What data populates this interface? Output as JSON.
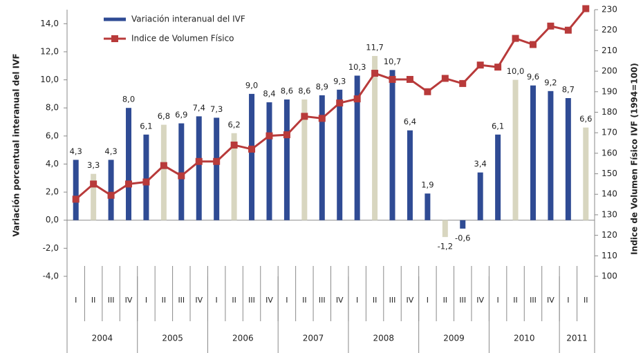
{
  "chart_data": {
    "type": "bar-line",
    "y_label": "Variación porcentual interanual del IVF",
    "y2_label": "Indice de Volumen Físico IVF (1994=100)",
    "categories": [
      "I",
      "II",
      "III",
      "IV",
      "I",
      "II",
      "III",
      "IV",
      "I",
      "II",
      "III",
      "IV",
      "I",
      "II",
      "III",
      "IV",
      "I",
      "II",
      "III",
      "IV",
      "I",
      "II",
      "III",
      "IV",
      "I",
      "II",
      "III",
      "IV",
      "I",
      "II"
    ],
    "groups": [
      {
        "label": "2004",
        "count": 4
      },
      {
        "label": "2005",
        "count": 4
      },
      {
        "label": "2006",
        "count": 4
      },
      {
        "label": "2007",
        "count": 4
      },
      {
        "label": "2008",
        "count": 4
      },
      {
        "label": "2009",
        "count": 4
      },
      {
        "label": "2010",
        "count": 4
      },
      {
        "label": "2011",
        "count": 2
      }
    ],
    "series": [
      {
        "name": "Variación interanual del IVF",
        "type": "bar",
        "color": "#2f4b94",
        "colors": [
          "#2f4b94",
          "#d8d6c0",
          "#2f4b94",
          "#2f4b94",
          "#2f4b94",
          "#d8d6c0",
          "#2f4b94",
          "#2f4b94",
          "#2f4b94",
          "#d8d6c0",
          "#2f4b94",
          "#2f4b94",
          "#2f4b94",
          "#d8d6c0",
          "#2f4b94",
          "#2f4b94",
          "#2f4b94",
          "#d8d6c0",
          "#2f4b94",
          "#2f4b94",
          "#2f4b94",
          "#d8d6c0",
          "#2f4b94",
          "#2f4b94",
          "#2f4b94",
          "#d8d6c0",
          "#2f4b94",
          "#2f4b94",
          "#2f4b94",
          "#d8d6c0"
        ],
        "values": [
          4.3,
          3.3,
          4.3,
          8.0,
          6.1,
          6.8,
          6.9,
          7.4,
          7.3,
          6.2,
          9.0,
          8.4,
          8.6,
          8.6,
          8.9,
          9.3,
          10.3,
          11.7,
          10.7,
          6.4,
          1.9,
          -1.2,
          -0.6,
          3.4,
          6.1,
          10.0,
          9.6,
          9.2,
          8.7,
          6.6
        ],
        "value_labels": [
          "4,3",
          "3,3",
          "4,3",
          "8,0",
          "6,1",
          "6,8",
          "6,9",
          "7,4",
          "7,3",
          "6,2",
          "9,0",
          "8,4",
          "8,6",
          "8,6",
          "8,9",
          "9,3",
          "10,3",
          "11,7",
          "10,7",
          "6,4",
          "1,9",
          "-1,2",
          "-0,6",
          "3,4",
          "6,1",
          "10,0",
          "9,6",
          "9,2",
          "8,7",
          "6,6"
        ]
      },
      {
        "name": "Indice de Volumen Físico",
        "type": "line",
        "axis": "y2",
        "color": "#b83a3a",
        "values": [
          137.6,
          145,
          139.5,
          145,
          146,
          154,
          149,
          156,
          156,
          164,
          162,
          168.5,
          169,
          178,
          177,
          184.5,
          186.5,
          199,
          196,
          196,
          190,
          196.5,
          194,
          203,
          202,
          216,
          213,
          222,
          220,
          230.5
        ]
      }
    ],
    "ylim": [
      -4,
      15
    ],
    "yticks": [
      {
        "value": -4,
        "label": "-4,0"
      },
      {
        "value": -2,
        "label": "-2,0"
      },
      {
        "value": 0,
        "label": "0,0"
      },
      {
        "value": 2,
        "label": "2,0"
      },
      {
        "value": 4,
        "label": "4,0"
      },
      {
        "value": 6,
        "label": "6,0"
      },
      {
        "value": 8,
        "label": "8,0"
      },
      {
        "value": 10,
        "label": "10,0"
      },
      {
        "value": 12,
        "label": "12,0"
      },
      {
        "value": 14,
        "label": "14,0"
      }
    ],
    "y2lim": [
      100,
      230
    ],
    "y2ticks": [
      100,
      110,
      120,
      130,
      140,
      150,
      160,
      170,
      180,
      190,
      200,
      210,
      220,
      230
    ]
  }
}
